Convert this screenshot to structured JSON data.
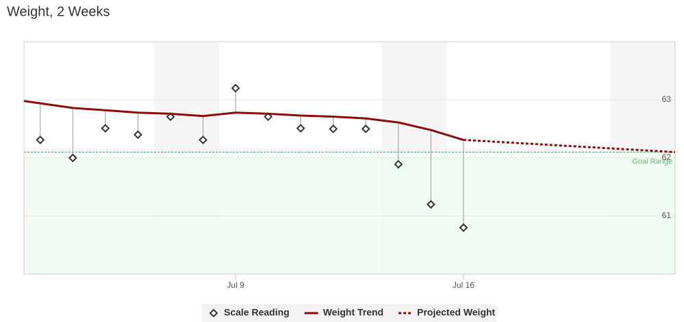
{
  "chart_data": {
    "type": "line",
    "title": "Weight, 2 Weeks",
    "xlim": [
      2.5,
      22.5
    ],
    "xticks": [
      {
        "value": 9,
        "label": "Jul 9"
      },
      {
        "value": 16,
        "label": "Jul 16"
      }
    ],
    "ylim": [
      60,
      64
    ],
    "yticks": [
      61,
      62,
      63
    ],
    "grid": true,
    "weekends": [
      [
        6.5,
        8.5
      ],
      [
        13.5,
        15.5
      ],
      [
        20.5,
        22.5
      ]
    ],
    "goal": {
      "label": "Goal Range",
      "value": 62.1,
      "color": "#5a9a6a",
      "fill": "#effcf1"
    },
    "legend": "bottom",
    "series": [
      {
        "name": "Scale Reading",
        "style": "marker",
        "color": "#333333",
        "x": [
          3,
          4,
          5,
          6,
          7,
          8,
          9,
          10,
          11,
          12,
          13,
          14,
          15,
          16
        ],
        "values": [
          62.31,
          62.0,
          62.51,
          62.4,
          62.71,
          62.31,
          63.2,
          62.71,
          62.51,
          62.5,
          62.5,
          61.89,
          61.2,
          60.8
        ]
      },
      {
        "name": "Weight Trend",
        "style": "solid",
        "color": "#8b0a0a",
        "x": [
          2.5,
          3,
          4,
          5,
          6,
          7,
          8,
          9,
          10,
          11,
          12,
          13,
          14,
          15,
          16
        ],
        "values": [
          62.98,
          62.94,
          62.86,
          62.82,
          62.78,
          62.76,
          62.72,
          62.78,
          62.76,
          62.73,
          62.71,
          62.68,
          62.61,
          62.48,
          62.31
        ]
      },
      {
        "name": "Projected Weight",
        "style": "dotted",
        "color": "#8b0a0a",
        "x": [
          16,
          22.5
        ],
        "values": [
          62.31,
          62.1
        ]
      }
    ]
  }
}
